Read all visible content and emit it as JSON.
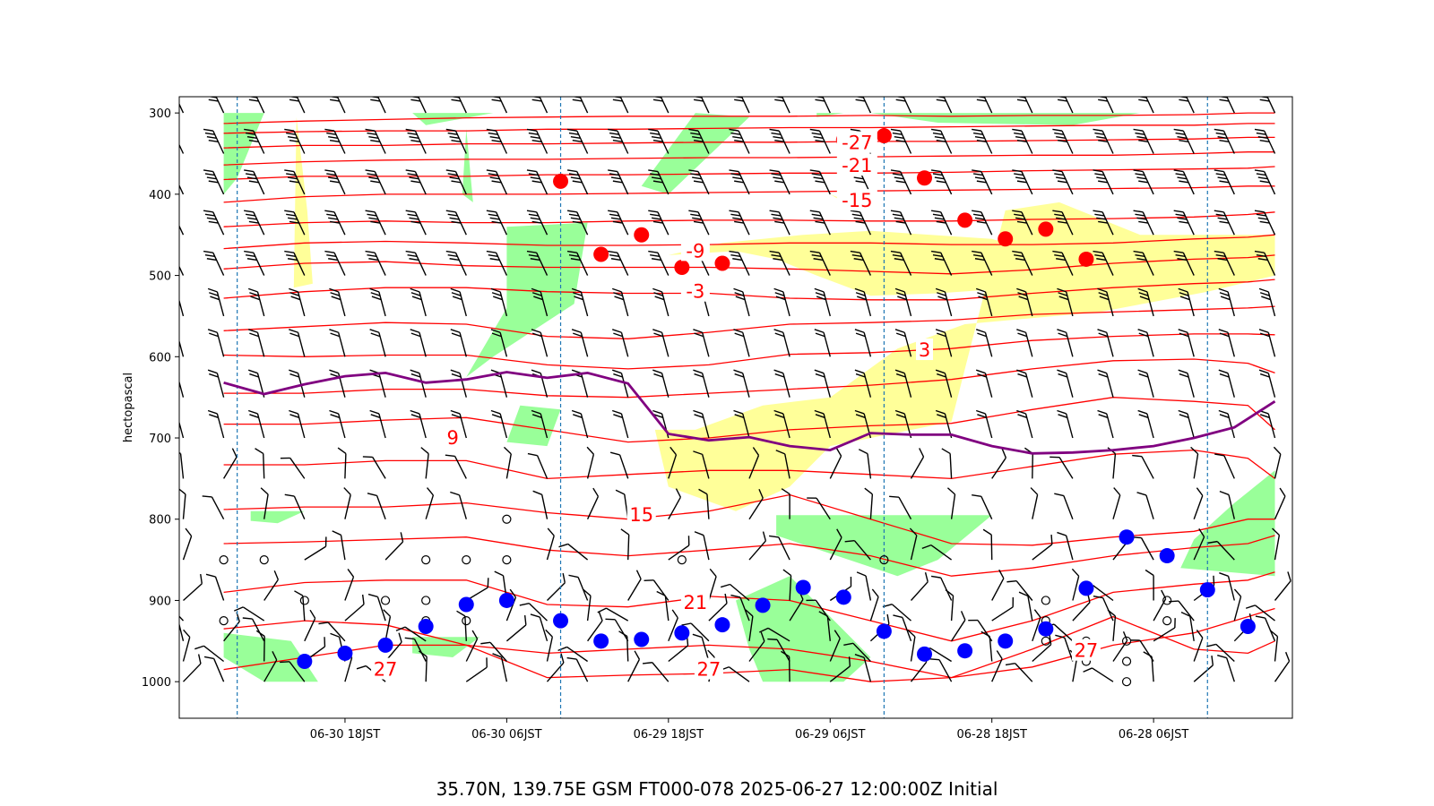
{
  "caption": "35.70N, 139.75E GSM FT000-078 2025-06-27 12:00:00Z Initial",
  "chart_data": {
    "type": "time-height cross section",
    "ylabel": "hectopascal",
    "xlabel": "",
    "y_inverted": true,
    "ylim": [
      1045,
      280
    ],
    "y_ticks": [
      300,
      400,
      500,
      600,
      700,
      800,
      900,
      1000
    ],
    "x_axis_reversed": true,
    "x_axis_unit": "hours after 2025-06-27 12:00Z",
    "xlim": [
      81.3,
      -1.3
    ],
    "x_ticks": [
      {
        "t": 69,
        "label": "06-30 18JST"
      },
      {
        "t": 57,
        "label": "06-30 06JST"
      },
      {
        "t": 45,
        "label": "06-29 18JST"
      },
      {
        "t": 33,
        "label": "06-29 06JST"
      },
      {
        "t": 21,
        "label": "06-28 18JST"
      },
      {
        "t": 9,
        "label": "06-28 06JST"
      }
    ],
    "vertical_gridlines_t": [
      77,
      53,
      29,
      5
    ],
    "colors": {
      "isotherm": "#ff0000",
      "green_fill": "#99ff99",
      "yellow_fill": "#ffff99",
      "purple_line": "#800080",
      "blue_marker": "#0000ff",
      "red_marker": "#ff0000",
      "gridline": "#1f77b4",
      "barb": "#000000"
    },
    "isotherm_labels": [
      {
        "text": "-27",
        "t": 31,
        "p": 337
      },
      {
        "text": "-21",
        "t": 31,
        "p": 365
      },
      {
        "text": "-15",
        "t": 31,
        "p": 408
      },
      {
        "text": "-9",
        "t": 43,
        "p": 470
      },
      {
        "text": "-3",
        "t": 43,
        "p": 520
      },
      {
        "text": "3",
        "t": 26,
        "p": 592
      },
      {
        "text": "9",
        "t": 61,
        "p": 700
      },
      {
        "text": "15",
        "t": 47,
        "p": 795
      },
      {
        "text": "21",
        "t": 43,
        "p": 903
      },
      {
        "text": "27",
        "t": 66,
        "p": 985
      },
      {
        "text": "27",
        "t": 42,
        "p": 985
      },
      {
        "text": "27",
        "t": 14,
        "p": 962
      }
    ],
    "purple_line": {
      "t": [
        78,
        75,
        72,
        69,
        66,
        63,
        60,
        57,
        54,
        51,
        48,
        45,
        42,
        39,
        36,
        33,
        30,
        27,
        24,
        21,
        18,
        15,
        12,
        9,
        6,
        3,
        0
      ],
      "p": [
        632,
        646,
        634,
        624,
        620,
        632,
        628,
        619,
        626,
        620,
        633,
        695,
        703,
        699,
        710,
        715,
        694,
        696,
        696,
        710,
        719,
        718,
        715,
        710,
        700,
        687,
        655
      ]
    },
    "red_markers": [
      {
        "t": 53,
        "p": 384
      },
      {
        "t": 50,
        "p": 474
      },
      {
        "t": 47,
        "p": 450
      },
      {
        "t": 44,
        "p": 490
      },
      {
        "t": 41,
        "p": 485
      },
      {
        "t": 32,
        "p": 333
      },
      {
        "t": 29,
        "p": 328
      },
      {
        "t": 26,
        "p": 380
      },
      {
        "t": 23,
        "p": 432
      },
      {
        "t": 20,
        "p": 455
      },
      {
        "t": 17,
        "p": 443
      },
      {
        "t": 14,
        "p": 480
      }
    ],
    "blue_markers": [
      {
        "t": 72,
        "p": 975
      },
      {
        "t": 69,
        "p": 965
      },
      {
        "t": 66,
        "p": 955
      },
      {
        "t": 63,
        "p": 932
      },
      {
        "t": 60,
        "p": 905
      },
      {
        "t": 57,
        "p": 900
      },
      {
        "t": 53,
        "p": 925
      },
      {
        "t": 50,
        "p": 950
      },
      {
        "t": 47,
        "p": 948
      },
      {
        "t": 44,
        "p": 940
      },
      {
        "t": 41,
        "p": 930
      },
      {
        "t": 38,
        "p": 906
      },
      {
        "t": 35,
        "p": 884
      },
      {
        "t": 32,
        "p": 896
      },
      {
        "t": 29,
        "p": 938
      },
      {
        "t": 26,
        "p": 966
      },
      {
        "t": 23,
        "p": 962
      },
      {
        "t": 20,
        "p": 950
      },
      {
        "t": 17,
        "p": 935
      },
      {
        "t": 14,
        "p": 885
      },
      {
        "t": 11,
        "p": 822
      },
      {
        "t": 8,
        "p": 845
      },
      {
        "t": 5,
        "p": 887
      },
      {
        "t": 2,
        "p": 932
      }
    ],
    "calm_circles": [
      {
        "t": 78,
        "p": 850
      },
      {
        "t": 75,
        "p": 850
      },
      {
        "t": 78,
        "p": 925
      },
      {
        "t": 72,
        "p": 900
      },
      {
        "t": 66,
        "p": 900
      },
      {
        "t": 63,
        "p": 850
      },
      {
        "t": 63,
        "p": 900
      },
      {
        "t": 63,
        "p": 925
      },
      {
        "t": 60,
        "p": 850
      },
      {
        "t": 60,
        "p": 925
      },
      {
        "t": 57,
        "p": 800
      },
      {
        "t": 57,
        "p": 850
      },
      {
        "t": 44,
        "p": 850
      },
      {
        "t": 29,
        "p": 850
      },
      {
        "t": 17,
        "p": 900
      },
      {
        "t": 17,
        "p": 925
      },
      {
        "t": 17,
        "p": 950
      },
      {
        "t": 14,
        "p": 950
      },
      {
        "t": 14,
        "p": 975
      },
      {
        "t": 11,
        "p": 950
      },
      {
        "t": 11,
        "p": 975
      },
      {
        "t": 11,
        "p": 1000
      },
      {
        "t": 8,
        "p": 900
      },
      {
        "t": 8,
        "p": 925
      }
    ],
    "green_regions": [
      {
        "t": [
          78,
          75,
          76,
          77,
          78
        ],
        "p": [
          300,
          300,
          340,
          380,
          400
        ]
      },
      {
        "t": [
          64,
          58,
          63,
          64
        ],
        "p": [
          300,
          300,
          315,
          300
        ]
      },
      {
        "t": [
          60,
          59.5,
          60.3,
          60
        ],
        "p": [
          320,
          410,
          400,
          320
        ]
      },
      {
        "t": [
          57,
          51,
          52,
          58,
          60,
          57
        ],
        "p": [
          440,
          435,
          535,
          600,
          625,
          540
        ]
      },
      {
        "t": [
          56,
          53,
          54,
          57,
          56
        ],
        "p": [
          660,
          665,
          710,
          705,
          660
        ]
      },
      {
        "t": [
          43,
          39,
          45,
          47,
          43
        ],
        "p": [
          300,
          305,
          400,
          390,
          300
        ]
      },
      {
        "t": [
          34,
          32,
          34
        ],
        "p": [
          300,
          300,
          305
        ]
      },
      {
        "t": [
          30,
          10,
          15,
          25,
          30
        ],
        "p": [
          300,
          300,
          315,
          312,
          300
        ]
      },
      {
        "t": [
          76,
          72,
          74,
          76
        ],
        "p": [
          790,
          790,
          805,
          802
        ]
      },
      {
        "t": [
          37,
          21,
          25,
          28,
          37
        ],
        "p": [
          795,
          795,
          850,
          870,
          820
        ]
      },
      {
        "t": [
          78,
          73,
          71,
          75,
          78
        ],
        "p": [
          940,
          950,
          1000,
          1000,
          970
        ]
      },
      {
        "t": [
          64,
          59,
          61,
          64
        ],
        "p": [
          945,
          945,
          970,
          965
        ]
      },
      {
        "t": [
          40,
          36,
          30,
          32,
          38,
          39,
          40
        ],
        "p": [
          900,
          870,
          970,
          1000,
          1000,
          960,
          900
        ]
      },
      {
        "t": [
          0,
          3,
          6,
          7,
          0
        ],
        "p": [
          740,
          780,
          825,
          860,
          870
        ]
      }
    ],
    "yellow_regions": [
      {
        "t": [
          72.6,
          71.8,
          71.4,
          72.8
        ],
        "p": [
          305,
          420,
          510,
          515
        ]
      },
      {
        "t": [
          33,
          31.5,
          32.5,
          33
        ],
        "p": [
          400,
          410,
          405,
          400
        ]
      },
      {
        "t": [
          20,
          16,
          10,
          0,
          0,
          5,
          13,
          23,
          28,
          33,
          38,
          43,
          46,
          45,
          40,
          36,
          33,
          24,
          20
        ],
        "p": [
          420,
          410,
          450,
          450,
          500,
          520,
          545,
          560,
          590,
          650,
          660,
          690,
          690,
          760,
          790,
          760,
          710,
          680,
          420
        ]
      },
      {
        "t": [
          45,
          40,
          37,
          34,
          30,
          25,
          19,
          16,
          21,
          30,
          35,
          41,
          45
        ],
        "p": [
          475,
          470,
          480,
          500,
          525,
          522,
          515,
          480,
          455,
          445,
          450,
          460,
          475
        ]
      }
    ],
    "isotherms": [
      {
        "p": [
          313,
          310,
          308,
          306,
          305,
          304,
          304,
          304,
          303,
          304,
          303,
          303,
          302,
          300,
          300
        ]
      },
      {
        "p": [
          325,
          323,
          322,
          322,
          320,
          320,
          319,
          318,
          318,
          317,
          316,
          315,
          315,
          313,
          313
        ]
      },
      {
        "p": [
          343,
          340,
          340,
          338,
          338,
          337,
          336,
          336,
          335,
          335,
          334,
          333,
          332,
          330,
          330
        ]
      },
      {
        "p": [
          364,
          360,
          358,
          357,
          357,
          356,
          355,
          355,
          354,
          353,
          352,
          352,
          350,
          348,
          348
        ]
      },
      {
        "p": [
          382,
          378,
          378,
          378,
          376,
          376,
          375,
          374,
          374,
          373,
          371,
          370,
          369,
          368,
          366
        ]
      },
      {
        "p": [
          410,
          403,
          400,
          400,
          400,
          399,
          398,
          397,
          396,
          395,
          394,
          393,
          392,
          390,
          390
        ]
      },
      {
        "p": [
          440,
          435,
          433,
          435,
          435,
          433,
          432,
          432,
          433,
          433,
          431,
          430,
          428,
          425,
          422
        ]
      },
      {
        "p": [
          467,
          460,
          458,
          460,
          463,
          463,
          462,
          460,
          460,
          462,
          462,
          460,
          455,
          453,
          450
        ]
      },
      {
        "p": [
          492,
          485,
          483,
          488,
          490,
          490,
          490,
          492,
          495,
          498,
          493,
          485,
          480,
          478,
          475
        ]
      },
      {
        "p": [
          528,
          520,
          515,
          515,
          520,
          522,
          522,
          528,
          530,
          530,
          522,
          515,
          510,
          508,
          505
        ]
      },
      {
        "p": [
          568,
          563,
          558,
          560,
          575,
          578,
          570,
          560,
          558,
          555,
          548,
          545,
          542,
          540,
          538
        ]
      },
      {
        "p": [
          598,
          600,
          598,
          598,
          610,
          615,
          610,
          597,
          595,
          590,
          580,
          575,
          572,
          572,
          573
        ]
      },
      {
        "p": [
          645,
          645,
          640,
          640,
          648,
          650,
          645,
          640,
          635,
          628,
          615,
          605,
          603,
          608,
          620
        ]
      },
      {
        "p": [
          683,
          683,
          678,
          675,
          690,
          705,
          700,
          690,
          685,
          682,
          665,
          650,
          655,
          660,
          690
        ]
      },
      {
        "p": [
          733,
          733,
          728,
          728,
          750,
          745,
          740,
          740,
          745,
          750,
          735,
          720,
          715,
          725,
          750
        ]
      },
      {
        "p": [
          788,
          785,
          785,
          780,
          792,
          800,
          790,
          770,
          800,
          830,
          832,
          822,
          815,
          800,
          800
        ]
      },
      {
        "p": [
          830,
          828,
          825,
          822,
          838,
          845,
          838,
          830,
          845,
          870,
          860,
          845,
          835,
          830,
          820
        ]
      },
      {
        "p": [
          890,
          878,
          875,
          875,
          905,
          908,
          895,
          900,
          925,
          950,
          925,
          890,
          880,
          875,
          865
        ]
      },
      {
        "p": [
          935,
          925,
          930,
          955,
          965,
          960,
          955,
          960,
          975,
          995,
          982,
          955,
          940,
          920,
          910
        ]
      },
      {
        "p": [
          985,
          970,
          955,
          955,
          995,
          992,
          990,
          985,
          1000,
          995,
          960,
          920,
          960,
          965,
          950
        ]
      }
    ],
    "isotherm_t": [
      78,
      72,
      66,
      60,
      54,
      48,
      42,
      36,
      30,
      24,
      18,
      12,
      6,
      2,
      0
    ],
    "barb_levels_p": [
      300,
      350,
      400,
      450,
      500,
      550,
      600,
      650,
      700,
      750,
      800,
      850,
      900,
      925,
      950,
      975,
      1000
    ],
    "barb_times_t": [
      81,
      78,
      75,
      72,
      69,
      66,
      63,
      60,
      57,
      54,
      51,
      48,
      45,
      42,
      39,
      36,
      33,
      30,
      27,
      24,
      21,
      18,
      15,
      12,
      9,
      6,
      3,
      0
    ]
  }
}
